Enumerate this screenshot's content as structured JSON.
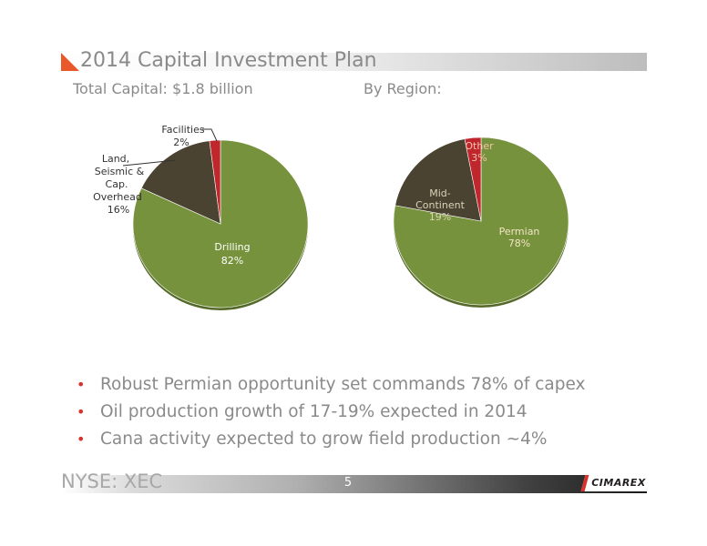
{
  "slide": {
    "title": "2014 Capital Investment Plan",
    "subtitle_left": "Total Capital: $1.8 billion",
    "subtitle_right": "By Region:",
    "bullets": [
      "Robust Permian opportunity set commands 78% of capex",
      "Oil production growth of 17-19% expected in 2014",
      "Cana activity expected to grow field production ~4%"
    ],
    "footer_ticker": "NYSE: XEC",
    "page_number": "5",
    "logo_text": "CIMAREX"
  },
  "colors": {
    "green": "#76923c",
    "dark": "#4a4331",
    "red": "#c0272d",
    "accent": "#e8582b"
  },
  "chart_data": [
    {
      "type": "pie",
      "title": "",
      "slices": [
        {
          "label": "Drilling",
          "value": 82,
          "pct_text": "82%",
          "color": "#76923c"
        },
        {
          "label": "Land, Seismic & Cap. Overhead",
          "value": 16,
          "pct_text": "16%",
          "color": "#4a4331"
        },
        {
          "label": "Facilities",
          "value": 2,
          "pct_text": "2%",
          "color": "#c0272d"
        }
      ]
    },
    {
      "type": "pie",
      "title": "",
      "slices": [
        {
          "label": "Permian",
          "value": 78,
          "pct_text": "78%",
          "color": "#76923c"
        },
        {
          "label": "Mid-Continent",
          "value": 19,
          "pct_text": "19%",
          "color": "#4a4331"
        },
        {
          "label": "Other",
          "value": 3,
          "pct_text": "3%",
          "color": "#c0272d"
        }
      ]
    }
  ]
}
